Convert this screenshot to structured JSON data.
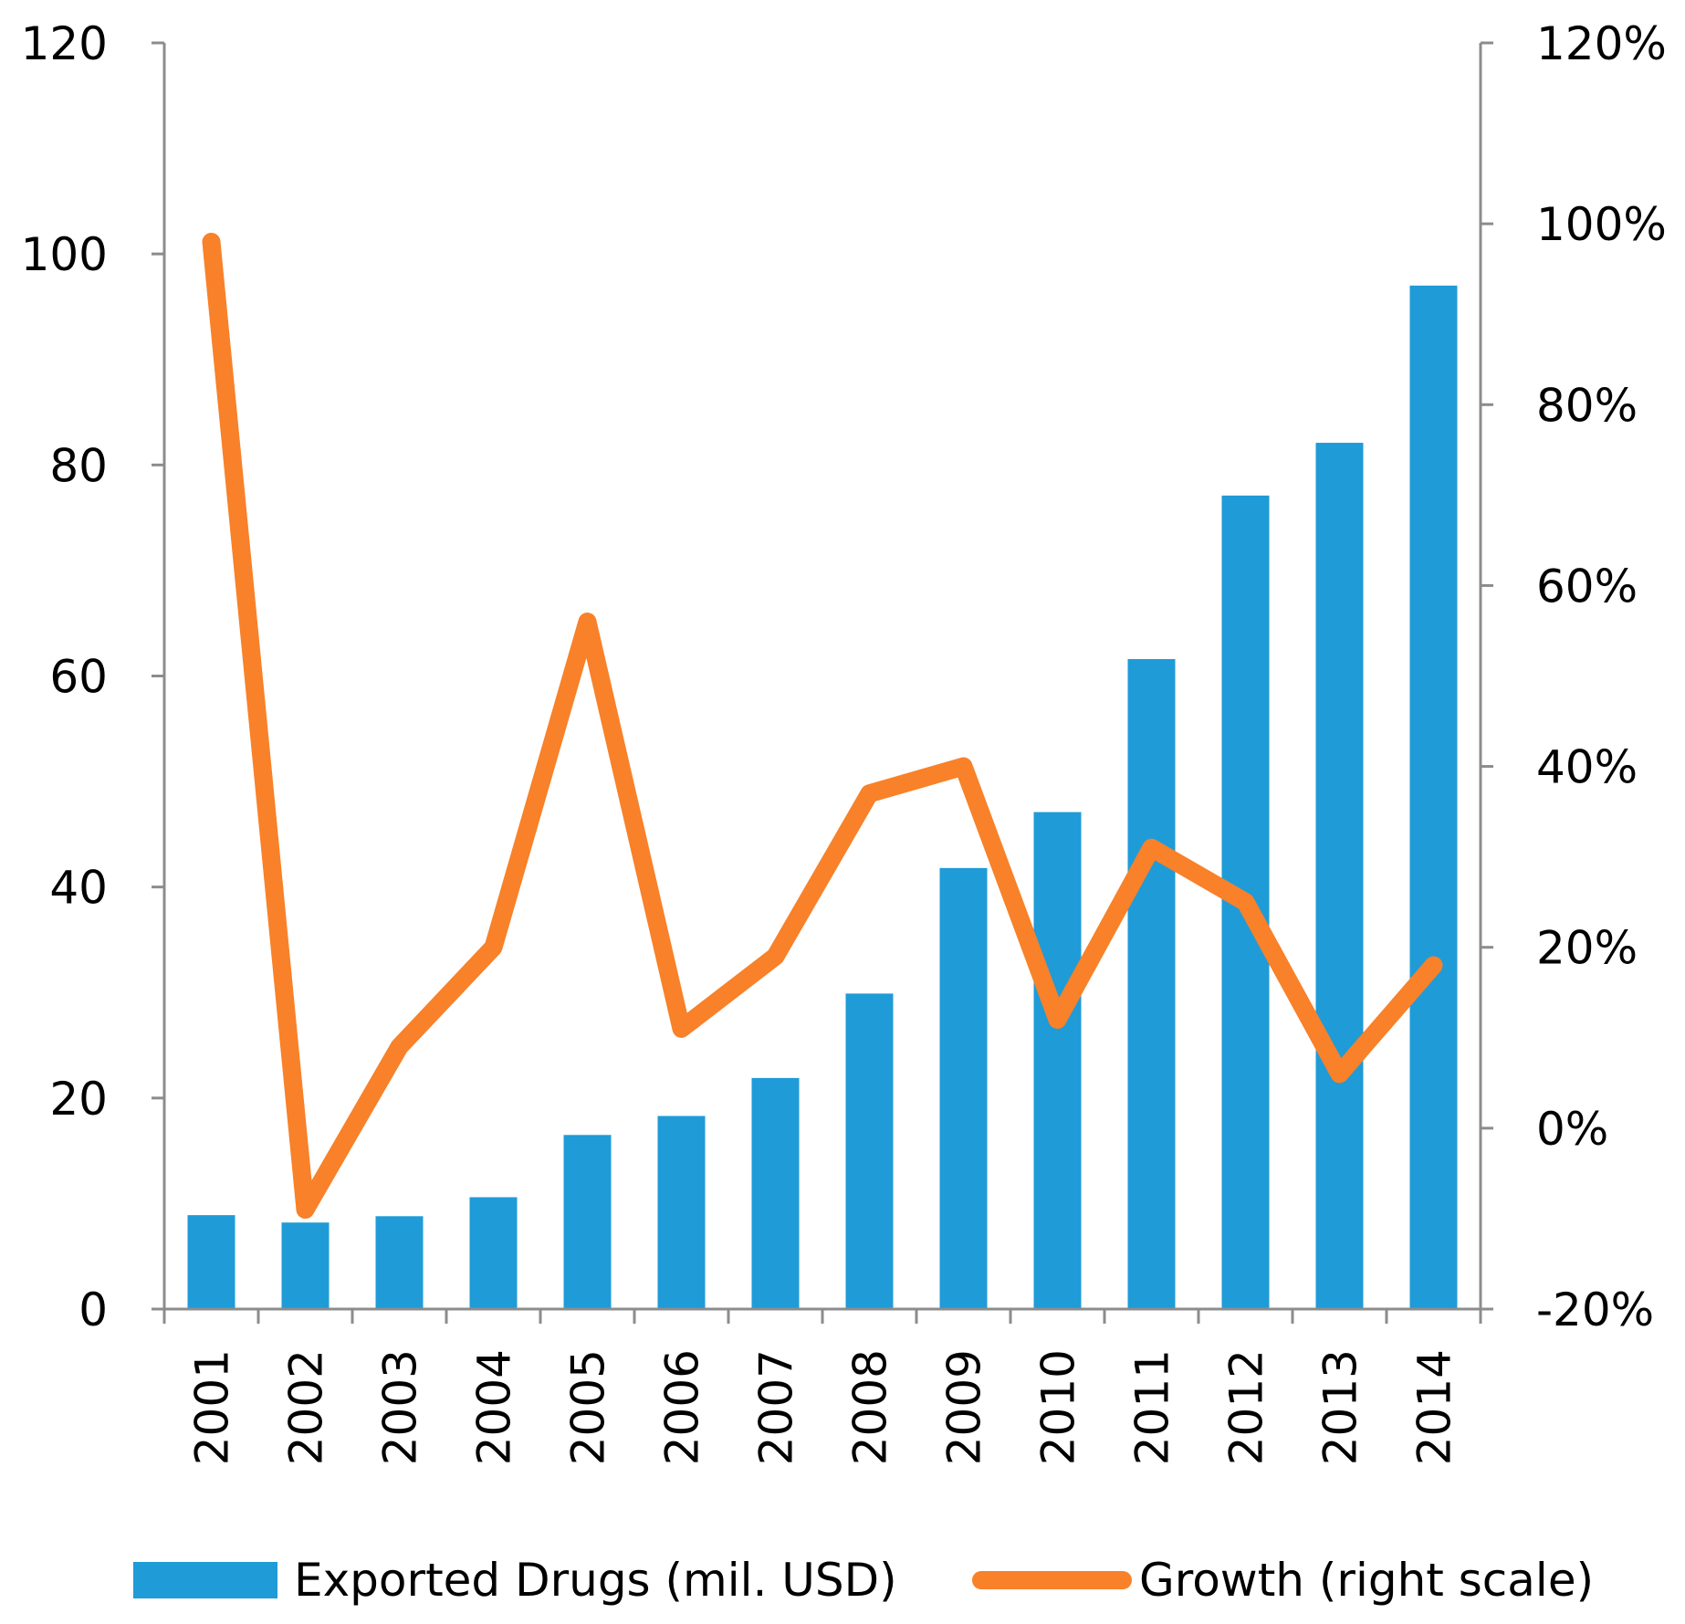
{
  "chart_data": {
    "type": "bar+line",
    "title": "",
    "categories": [
      "2001",
      "2002",
      "2003",
      "2004",
      "2005",
      "2006",
      "2007",
      "2008",
      "2009",
      "2010",
      "2011",
      "2012",
      "2013",
      "2014"
    ],
    "series": [
      {
        "name": "Exported Drugs (mil. USD)",
        "type": "bar",
        "axis": "left",
        "color": "#1f9bd7",
        "values": [
          8.9,
          8.2,
          8.8,
          10.6,
          16.5,
          18.3,
          21.9,
          29.9,
          41.8,
          47.1,
          61.6,
          77.1,
          82.1,
          97.0
        ]
      },
      {
        "name": "Growth (right scale)",
        "type": "line",
        "axis": "right",
        "color": "#f88129",
        "values": [
          98,
          -9,
          9,
          20,
          56,
          11,
          19,
          37,
          40,
          12,
          31,
          25,
          6,
          18
        ]
      }
    ],
    "y_left": {
      "min": 0,
      "max": 120,
      "ticks": [
        0,
        20,
        40,
        60,
        80,
        100,
        120
      ],
      "tick_labels": [
        "0",
        "20",
        "40",
        "60",
        "80",
        "100",
        "120"
      ]
    },
    "y_right": {
      "min": -20,
      "max": 120,
      "ticks": [
        -20,
        0,
        20,
        40,
        60,
        80,
        100,
        120
      ],
      "tick_labels": [
        "-20%",
        "0%",
        "20%",
        "40%",
        "60%",
        "80%",
        "100%",
        "120%"
      ]
    },
    "legend_position": "bottom",
    "legend": [
      "Exported Drugs (mil. USD)",
      "Growth (right scale)"
    ],
    "grid": false,
    "axis_color": "#8c8c8c"
  }
}
